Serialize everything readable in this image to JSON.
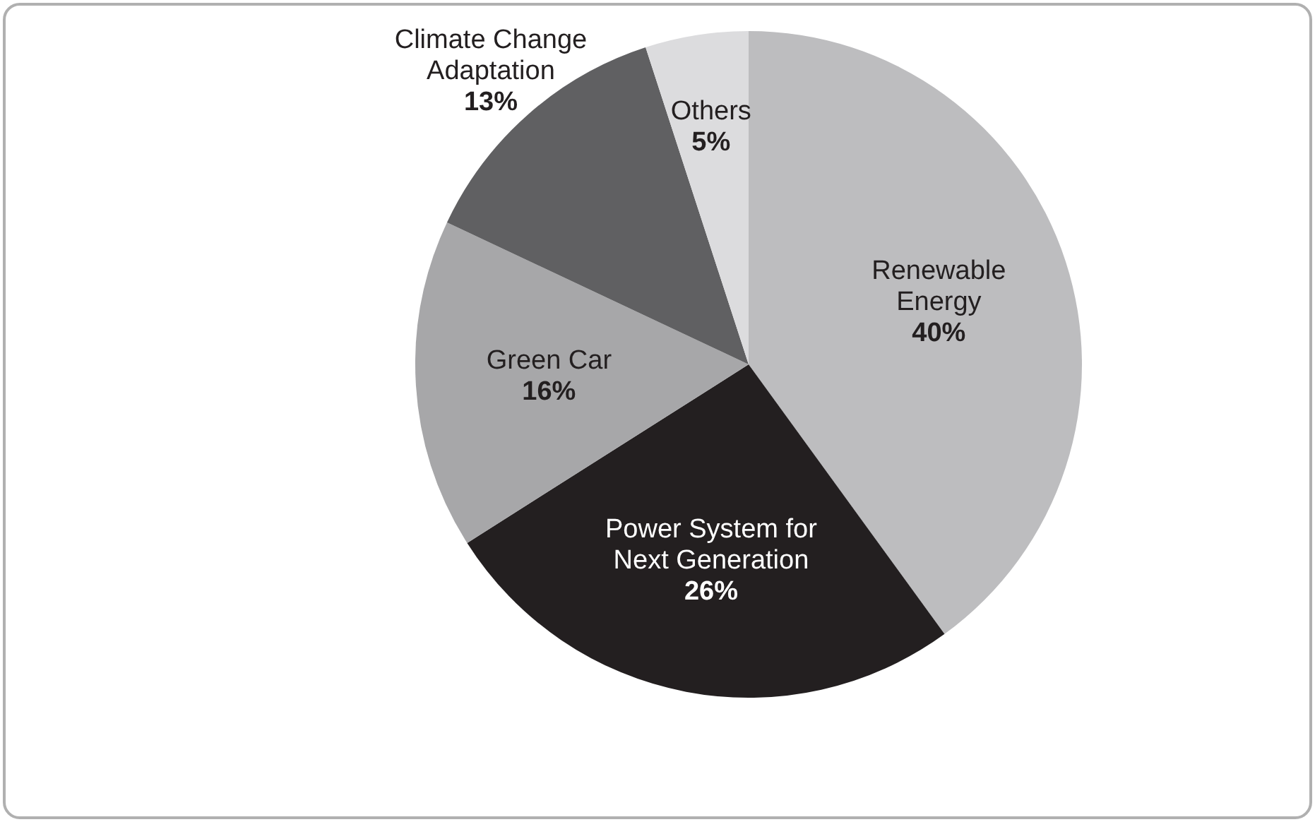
{
  "chart_data": {
    "type": "pie",
    "categories": [
      "Renewable Energy",
      "Power System for Next Generation",
      "Green Car",
      "Climate Change Adaptation",
      "Others"
    ],
    "values": [
      40,
      26,
      16,
      13,
      5
    ],
    "value_labels": [
      "40%",
      "26%",
      "16%",
      "13%",
      "5%"
    ],
    "colors": [
      "#bdbdbf",
      "#231f20",
      "#a7a7a9",
      "#606062",
      "#dcdcde"
    ],
    "legend": false
  }
}
